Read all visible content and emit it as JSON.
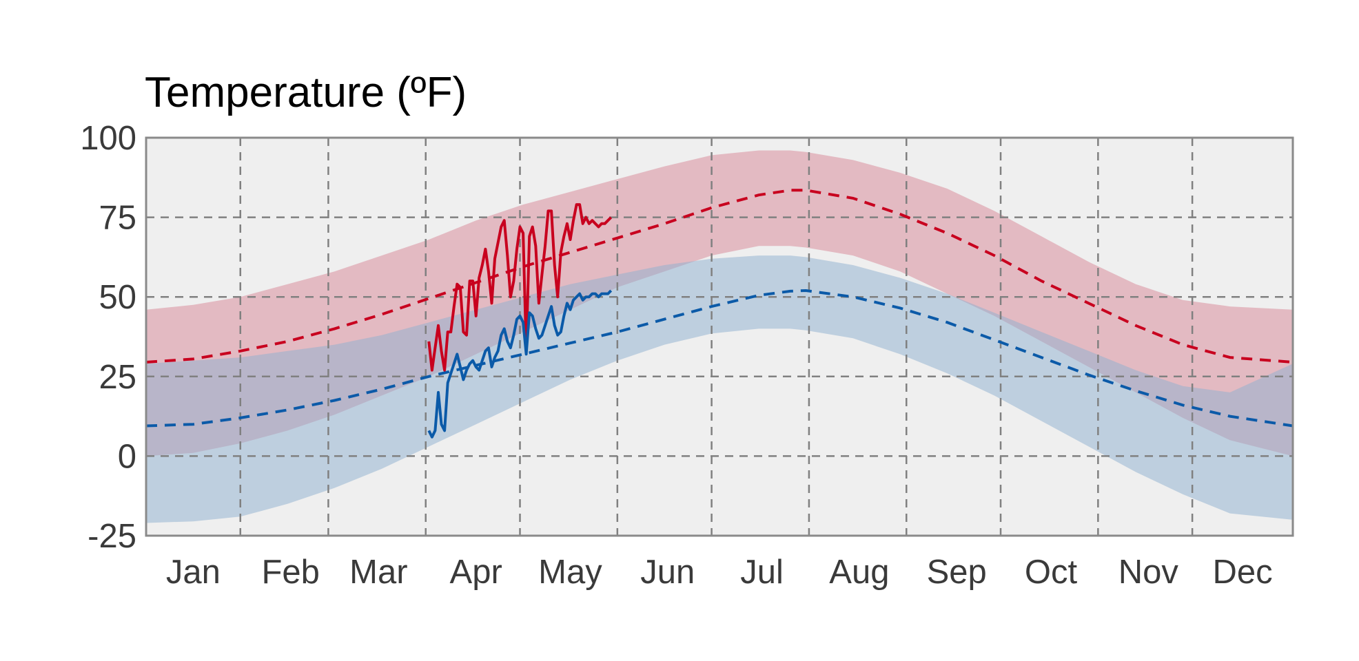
{
  "chart_data": {
    "type": "line",
    "title": "Temperature (ºF)",
    "xlabel": "",
    "ylabel": "",
    "ylim": [
      -25,
      100
    ],
    "xlim": [
      0,
      365
    ],
    "yticks": [
      100,
      75,
      50,
      25,
      0,
      -25
    ],
    "xticks": [
      {
        "label": "Jan",
        "day": 15
      },
      {
        "label": "Feb",
        "day": 46
      },
      {
        "label": "Mar",
        "day": 74
      },
      {
        "label": "Apr",
        "day": 105
      },
      {
        "label": "May",
        "day": 135
      },
      {
        "label": "Jun",
        "day": 166
      },
      {
        "label": "Jul",
        "day": 196
      },
      {
        "label": "Aug",
        "day": 227
      },
      {
        "label": "Sep",
        "day": 258
      },
      {
        "label": "Oct",
        "day": 288
      },
      {
        "label": "Nov",
        "day": 319
      },
      {
        "label": "Dec",
        "day": 349
      }
    ],
    "month_boundaries": [
      30,
      58,
      89,
      119,
      150,
      180,
      211,
      242,
      272,
      303,
      333
    ],
    "grid": true,
    "colors": {
      "high": "#c8001e",
      "low": "#0b5aa8",
      "high_band": "#d4798b",
      "low_band": "#8eb0d0",
      "plot_bg": "#efefef",
      "grid": "#808080",
      "frame": "#8a8a8a"
    },
    "series": [
      {
        "kind": "band",
        "x": [
          0,
          15,
          30,
          45,
          60,
          75,
          90,
          105,
          120,
          135,
          150,
          165,
          180,
          195,
          205,
          210,
          225,
          240,
          255,
          270,
          285,
          300,
          315,
          330,
          345,
          365
        ],
        "upper": [
          46,
          47.5,
          50,
          54,
          58,
          63,
          68,
          74,
          79,
          83,
          87,
          91,
          94.5,
          96,
          96,
          95.5,
          93,
          89,
          84,
          77,
          69,
          61,
          54,
          49,
          47,
          46
        ],
        "lower": [
          0,
          1,
          4,
          8,
          13,
          19,
          25,
          32,
          39,
          46,
          53,
          58,
          63,
          66,
          66,
          65.5,
          63,
          58,
          51,
          44,
          36,
          28,
          20,
          12,
          5,
          0
        ]
      },
      {
        "kind": "band",
        "x": [
          0,
          15,
          30,
          45,
          60,
          75,
          90,
          105,
          120,
          135,
          150,
          165,
          180,
          195,
          205,
          210,
          225,
          240,
          255,
          270,
          285,
          300,
          315,
          330,
          345,
          365
        ],
        "upper": [
          29,
          30,
          31,
          33,
          35,
          38,
          42,
          46,
          50,
          54,
          57,
          60,
          62,
          63,
          63,
          62.5,
          60,
          56,
          51,
          45,
          39,
          33,
          27,
          22,
          20,
          29
        ],
        "lower": [
          -21,
          -20.5,
          -19,
          -15,
          -10,
          -4,
          3,
          10,
          17,
          24,
          30,
          35,
          38.5,
          40,
          40,
          39.5,
          37,
          32,
          26,
          19,
          11,
          3,
          -5,
          -12,
          -18,
          -20
        ]
      },
      {
        "kind": "normal-line",
        "x": [
          0,
          15,
          30,
          45,
          60,
          75,
          90,
          105,
          120,
          135,
          150,
          165,
          180,
          195,
          205,
          210,
          225,
          240,
          255,
          270,
          285,
          300,
          315,
          330,
          345,
          365
        ],
        "values": [
          29.5,
          30.5,
          33,
          36,
          40,
          44.5,
          49.5,
          54.5,
          59.5,
          64,
          68.5,
          73,
          78,
          82,
          83.5,
          83.5,
          81,
          76,
          70,
          63,
          55,
          48,
          41,
          35,
          31,
          29.5
        ]
      },
      {
        "kind": "normal-line",
        "x": [
          0,
          15,
          30,
          45,
          60,
          75,
          90,
          105,
          120,
          135,
          150,
          165,
          180,
          195,
          205,
          210,
          225,
          240,
          255,
          270,
          285,
          300,
          315,
          330,
          345,
          365
        ],
        "values": [
          9.5,
          10,
          12,
          14.5,
          17.5,
          21,
          25,
          28.5,
          32,
          35.5,
          39,
          43,
          47,
          50.5,
          51.8,
          52,
          50,
          46.5,
          42,
          36.5,
          31,
          25.5,
          20.5,
          16,
          12.5,
          9.5
        ]
      },
      {
        "kind": "observed-line",
        "x": [
          90,
          91,
          92,
          93,
          94,
          95,
          96,
          97,
          98,
          99,
          100,
          101,
          102,
          103,
          104,
          105,
          106,
          107,
          108,
          109,
          110,
          111,
          112,
          113,
          114,
          115,
          116,
          117,
          118,
          119,
          120,
          121,
          122,
          123,
          124,
          125,
          126,
          127,
          128,
          129,
          130,
          131,
          132,
          133,
          134,
          135,
          136,
          137,
          138,
          139,
          140,
          141,
          142,
          143,
          144,
          145,
          146,
          147,
          148
        ],
        "values": [
          36,
          27,
          34,
          41,
          33,
          27,
          39,
          39,
          47,
          54,
          53,
          39,
          38,
          55,
          55,
          44,
          56,
          60,
          65,
          58,
          48,
          62,
          67,
          72,
          74,
          63,
          50,
          55,
          65,
          72,
          70,
          33,
          69,
          72,
          66,
          48,
          57,
          66,
          77,
          77,
          60,
          50,
          64,
          69,
          73,
          68,
          74,
          79,
          79,
          73,
          75,
          73,
          74,
          73,
          72,
          73,
          73,
          74,
          75
        ]
      },
      {
        "kind": "observed-line",
        "x": [
          90,
          91,
          92,
          93,
          94,
          95,
          96,
          97,
          98,
          99,
          100,
          101,
          102,
          103,
          104,
          105,
          106,
          107,
          108,
          109,
          110,
          111,
          112,
          113,
          114,
          115,
          116,
          117,
          118,
          119,
          120,
          121,
          122,
          123,
          124,
          125,
          126,
          127,
          128,
          129,
          130,
          131,
          132,
          133,
          134,
          135,
          136,
          137,
          138,
          139,
          140,
          141,
          142,
          143,
          144,
          145,
          146,
          147,
          148
        ],
        "values": [
          8,
          6,
          8,
          20,
          10,
          8,
          23,
          26,
          29,
          32,
          28,
          24,
          27,
          29,
          30,
          28,
          27,
          30,
          33,
          34,
          28,
          31,
          33,
          38,
          40,
          36,
          34,
          38,
          43,
          44,
          42,
          32,
          45,
          44,
          40,
          37,
          38,
          41,
          44,
          47,
          41,
          38,
          39,
          44,
          48,
          46,
          49,
          50,
          51,
          49,
          50,
          50,
          51,
          51,
          50,
          51,
          51,
          51,
          52
        ]
      }
    ]
  }
}
